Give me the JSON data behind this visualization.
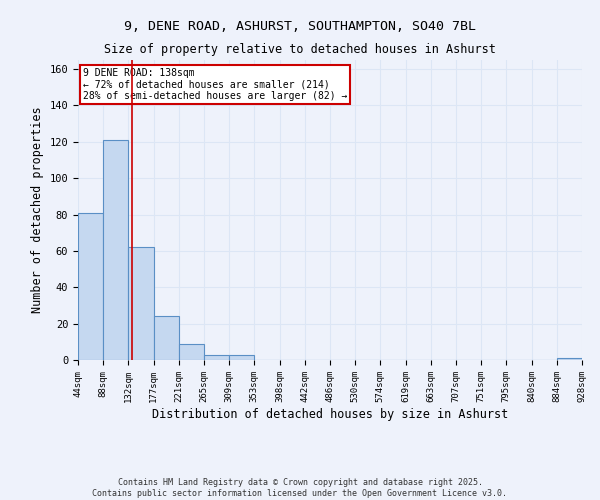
{
  "title1": "9, DENE ROAD, ASHURST, SOUTHAMPTON, SO40 7BL",
  "title2": "Size of property relative to detached houses in Ashurst",
  "xlabel": "Distribution of detached houses by size in Ashurst",
  "ylabel": "Number of detached properties",
  "bar_edges": [
    44,
    88,
    132,
    177,
    221,
    265,
    309,
    353,
    398,
    442,
    486,
    530,
    574,
    619,
    663,
    707,
    751,
    795,
    840,
    884,
    928
  ],
  "bar_heights": [
    81,
    121,
    62,
    24,
    9,
    3,
    3,
    0,
    0,
    0,
    0,
    0,
    0,
    0,
    0,
    0,
    0,
    0,
    0,
    1
  ],
  "bar_color": "#c5d8f0",
  "bar_edge_color": "#5a8fc5",
  "grid_color": "#dce6f5",
  "bg_color": "#eef2fb",
  "red_line_x": 138,
  "annotation_title": "9 DENE ROAD: 138sqm",
  "annotation_line1": "← 72% of detached houses are smaller (214)",
  "annotation_line2": "28% of semi-detached houses are larger (82) →",
  "annotation_box_color": "#ffffff",
  "annotation_border_color": "#cc0000",
  "ylim": [
    0,
    165
  ],
  "yticks": [
    0,
    20,
    40,
    60,
    80,
    100,
    120,
    140,
    160
  ],
  "tick_labels": [
    "44sqm",
    "88sqm",
    "132sqm",
    "177sqm",
    "221sqm",
    "265sqm",
    "309sqm",
    "353sqm",
    "398sqm",
    "442sqm",
    "486sqm",
    "530sqm",
    "574sqm",
    "619sqm",
    "663sqm",
    "707sqm",
    "751sqm",
    "795sqm",
    "840sqm",
    "884sqm",
    "928sqm"
  ],
  "footer1": "Contains HM Land Registry data © Crown copyright and database right 2025.",
  "footer2": "Contains public sector information licensed under the Open Government Licence v3.0."
}
